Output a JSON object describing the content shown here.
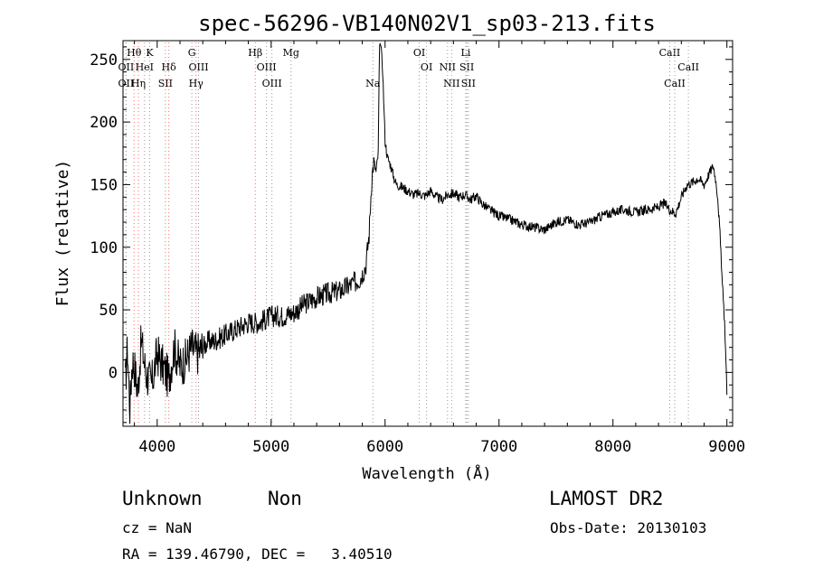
{
  "chart_data": {
    "type": "line",
    "title": "spec-56296-VB140N02V1_sp03-213.fits",
    "xlabel": "Wavelength (Å)",
    "ylabel": "Flux (relative)",
    "xlim": [
      3700,
      9050
    ],
    "ylim": [
      -43,
      265
    ],
    "xticks": [
      4000,
      5000,
      6000,
      7000,
      8000,
      9000
    ],
    "yticks": [
      0,
      50,
      100,
      150,
      200,
      250
    ],
    "grid": false,
    "series": [
      {
        "color": "#000000",
        "x": [
          3720,
          3740,
          3760,
          3780,
          3800,
          3830,
          3860,
          3900,
          3950,
          4000,
          4050,
          4100,
          4150,
          4200,
          4250,
          4300,
          4350,
          4400,
          4450,
          4500,
          4600,
          4700,
          4800,
          4900,
          5000,
          5100,
          5200,
          5300,
          5400,
          5500,
          5600,
          5700,
          5780,
          5830,
          5860,
          5880,
          5900,
          5920,
          5940,
          5950,
          5960,
          5980,
          6000,
          6020,
          6050,
          6080,
          6100,
          6150,
          6200,
          6250,
          6300,
          6350,
          6400,
          6450,
          6500,
          6550,
          6600,
          6650,
          6700,
          6750,
          6800,
          6850,
          6900,
          6950,
          7000,
          7100,
          7200,
          7300,
          7400,
          7500,
          7600,
          7700,
          7800,
          7900,
          8000,
          8100,
          8200,
          8300,
          8400,
          8450,
          8500,
          8550,
          8600,
          8650,
          8700,
          8750,
          8800,
          8850,
          8880,
          8900,
          8920,
          8940,
          8960,
          8980,
          9000
        ],
        "y": [
          -10,
          20,
          -30,
          10,
          5,
          -15,
          25,
          0,
          -10,
          15,
          5,
          -5,
          20,
          5,
          10,
          20,
          15,
          20,
          25,
          25,
          30,
          35,
          40,
          40,
          45,
          45,
          48,
          55,
          60,
          63,
          65,
          70,
          75,
          85,
          110,
          150,
          170,
          160,
          175,
          255,
          265,
          240,
          185,
          172,
          165,
          155,
          150,
          148,
          145,
          142,
          143,
          141,
          145,
          140,
          138,
          142,
          143,
          140,
          142,
          138,
          141,
          135,
          131,
          128,
          125,
          122,
          118,
          116,
          114,
          120,
          122,
          118,
          120,
          125,
          128,
          130,
          128,
          130,
          132,
          135,
          130,
          127,
          140,
          150,
          152,
          155,
          150,
          160,
          165,
          155,
          140,
          110,
          70,
          40,
          -15
        ]
      }
    ],
    "lines": [
      {
        "label": "Hθ",
        "x": 3797,
        "row": 1,
        "color": "#ff6666"
      },
      {
        "label": "OII",
        "x": 3727,
        "row": 2,
        "color": "#999999"
      },
      {
        "label": "HeI",
        "x": 3889,
        "row": 2,
        "color": "#999999"
      },
      {
        "label": "OII",
        "x": 3727,
        "row": 3,
        "color": "#999999"
      },
      {
        "label": "Hη",
        "x": 3835,
        "row": 3,
        "color": "#ff6666"
      },
      {
        "label": "K",
        "x": 3934,
        "row": 1,
        "color": "#999999"
      },
      {
        "label": "Hδ",
        "x": 4102,
        "row": 2,
        "color": "#ff6666"
      },
      {
        "label": "SII",
        "x": 4072,
        "row": 3,
        "color": "#999999"
      },
      {
        "label": "G",
        "x": 4304,
        "row": 1,
        "color": "#999999"
      },
      {
        "label": "OIII",
        "x": 4363,
        "row": 2,
        "color": "#999999"
      },
      {
        "label": "Hγ",
        "x": 4341,
        "row": 3,
        "color": "#ff6666"
      },
      {
        "label": "Hβ",
        "x": 4861,
        "row": 1,
        "color": "#ff6666"
      },
      {
        "label": "OIII",
        "x": 4959,
        "row": 2,
        "color": "#999999"
      },
      {
        "label": "OIII",
        "x": 5007,
        "row": 3,
        "color": "#999999"
      },
      {
        "label": "Mg",
        "x": 5175,
        "row": 1,
        "color": "#999999"
      },
      {
        "label": "Na",
        "x": 5893,
        "row": 3,
        "color": "#999999"
      },
      {
        "label": "OI",
        "x": 6300,
        "row": 1,
        "color": "#999999"
      },
      {
        "label": "OI",
        "x": 6364,
        "row": 2,
        "color": "#999999"
      },
      {
        "label": "Li",
        "x": 6708,
        "row": 1,
        "color": "#999999"
      },
      {
        "label": "NII",
        "x": 6548,
        "row": 2,
        "color": "#999999"
      },
      {
        "label": "SII",
        "x": 6717,
        "row": 2,
        "color": "#999999"
      },
      {
        "label": "NII",
        "x": 6584,
        "row": 3,
        "color": "#999999"
      },
      {
        "label": "SII",
        "x": 6731,
        "row": 3,
        "color": "#999999"
      },
      {
        "label": "CaII",
        "x": 8498,
        "row": 1,
        "color": "#999999"
      },
      {
        "label": "CaII",
        "x": 8662,
        "row": 2,
        "color": "#999999"
      },
      {
        "label": "CaII",
        "x": 8542,
        "row": 3,
        "color": "#999999"
      }
    ]
  },
  "info": {
    "class_label": "Unknown",
    "subclass_label": "Non",
    "survey": "LAMOST DR2",
    "cz": "cz = NaN",
    "obs_date": "Obs-Date: 20130103",
    "coords": "RA = 139.46790, DEC =   3.40510"
  }
}
